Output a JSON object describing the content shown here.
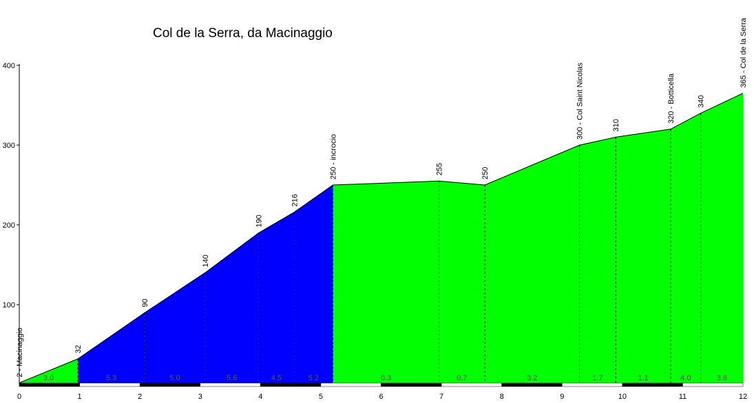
{
  "chart_data": {
    "type": "area",
    "title": "Col de la Serra, da Macinaggio",
    "xlabel": "",
    "ylabel": "",
    "xlim": [
      0,
      12
    ],
    "ylim": [
      0,
      400
    ],
    "x_ticks": [
      "0",
      "1",
      "2",
      "3",
      "4",
      "5",
      "6",
      "7",
      "8",
      "9",
      "10",
      "11",
      "12"
    ],
    "y_ticks": [
      "100",
      "200",
      "300",
      "400"
    ],
    "grid": false,
    "legend": "none",
    "points": [
      {
        "x": 0,
        "y": 2,
        "label": "2 - Macinaggio"
      },
      {
        "x": 0.97,
        "y": 32,
        "label": "32"
      },
      {
        "x": 2.08,
        "y": 90,
        "label": "90"
      },
      {
        "x": 3.08,
        "y": 140,
        "label": "140"
      },
      {
        "x": 3.97,
        "y": 190,
        "label": "190"
      },
      {
        "x": 4.56,
        "y": 216,
        "label": "216"
      },
      {
        "x": 5.2,
        "y": 250,
        "label": "250 - incrocio"
      },
      {
        "x": 6.96,
        "y": 255,
        "label": "255"
      },
      {
        "x": 7.72,
        "y": 250,
        "label": "250"
      },
      {
        "x": 9.29,
        "y": 300,
        "label": "300 - Col Saint Nicolas"
      },
      {
        "x": 9.89,
        "y": 310,
        "label": "310"
      },
      {
        "x": 10.8,
        "y": 320,
        "label": "320 - Botticella"
      },
      {
        "x": 11.3,
        "y": 340,
        "label": "340"
      },
      {
        "x": 12,
        "y": 365,
        "label": "365 - Col de la Serra"
      }
    ],
    "segments": [
      {
        "from": 0,
        "to": 0.97,
        "grade": "3.0",
        "color": "#00ff00"
      },
      {
        "from": 0.97,
        "to": 2.08,
        "grade": "5.3",
        "color": "#0000ff"
      },
      {
        "from": 2.08,
        "to": 3.08,
        "grade": "5.0",
        "color": "#0000ff"
      },
      {
        "from": 3.08,
        "to": 3.97,
        "grade": "5.6",
        "color": "#0000ff"
      },
      {
        "from": 3.97,
        "to": 4.56,
        "grade": "4.5",
        "color": "#0000ff"
      },
      {
        "from": 4.56,
        "to": 5.2,
        "grade": "5.2",
        "color": "#0000ff"
      },
      {
        "from": 5.2,
        "to": 6.96,
        "grade": "0.3",
        "color": "#00ff00"
      },
      {
        "from": 6.96,
        "to": 7.72,
        "grade": "0.7",
        "color": "#00ff00"
      },
      {
        "from": 7.72,
        "to": 9.29,
        "grade": "3.2",
        "color": "#00ff00"
      },
      {
        "from": 9.29,
        "to": 9.89,
        "grade": "1.7",
        "color": "#00ff00"
      },
      {
        "from": 9.89,
        "to": 10.8,
        "grade": "1.1",
        "color": "#00ff00"
      },
      {
        "from": 10.8,
        "to": 11.3,
        "grade": "4.0",
        "color": "#00ff00"
      },
      {
        "from": 11.3,
        "to": 12,
        "grade": "3.6",
        "color": "#00ff00"
      }
    ],
    "colors": {
      "easy": "#00ff00",
      "steep": "#0000ff",
      "km_bar_dark": "#000000",
      "km_bar_light": "#ffffff"
    }
  }
}
